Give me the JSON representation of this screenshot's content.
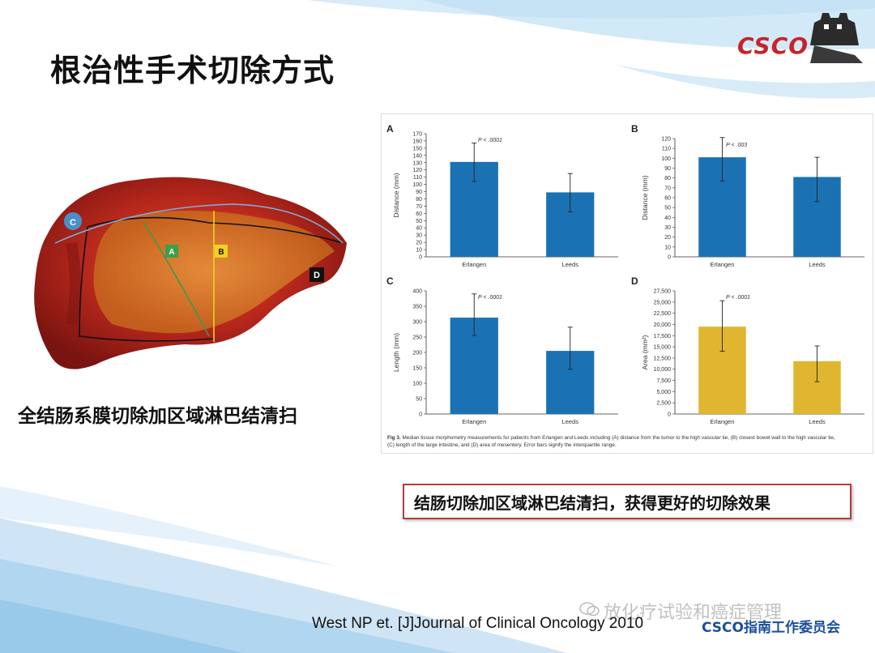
{
  "slide": {
    "title": "根治性手术切除方式",
    "specimen_caption": "全结肠系膜切除加区域淋巴结清扫",
    "highlight": "结肠切除加区域淋巴结清扫，获得更好的切除效果",
    "reference": "West NP et. [J]Journal of Clinical Oncology 2010",
    "footer": "CSCO指南工作委员会",
    "watermark": "放化疗试验和癌症管理",
    "logo_text": "CSCO"
  },
  "specimen_labels": {
    "c": "C",
    "a": "A",
    "b": "B",
    "d": "D"
  },
  "figure_caption": {
    "bold": "Fig 3.",
    "text": "Median tissue morphometry measurements for patients from Erlangen and Leeds including (A) distance from the tumor to the high vascular tie, (B) closest bowel wall to the high vascular tie, (C) length of the large intestine, and (D) area of mesentery. Error bars signify the interquartile range."
  },
  "colors": {
    "blue_bar": "#1b72b3",
    "gold_bar": "#e0b530",
    "box_border": "#b73a3a"
  },
  "chart_data": [
    {
      "panel": "A",
      "type": "bar",
      "categories": [
        "Erlangen",
        "Leeds"
      ],
      "values": [
        131,
        89
      ],
      "error_low": [
        104,
        62
      ],
      "error_high": [
        157,
        115
      ],
      "ylabel": "Distance (mm)",
      "ylim": [
        0,
        170
      ],
      "yticks": [
        0,
        10,
        20,
        30,
        40,
        50,
        60,
        70,
        80,
        90,
        100,
        110,
        120,
        130,
        140,
        150,
        160,
        170
      ],
      "ytick_labels": [
        "0",
        "10",
        "20",
        "30",
        "40",
        "50",
        "60",
        "70",
        "80",
        "90",
        "100",
        "110",
        "120",
        "130",
        "140",
        "150",
        "160",
        "170"
      ],
      "pvalue": "P < .0001",
      "color": "#1b72b3"
    },
    {
      "panel": "B",
      "type": "bar",
      "categories": [
        "Erlangen",
        "Leeds"
      ],
      "values": [
        101,
        81
      ],
      "error_low": [
        77,
        56
      ],
      "error_high": [
        121,
        101
      ],
      "ylabel": "Distance (mm)",
      "ylim": [
        0,
        120
      ],
      "yticks": [
        0,
        10,
        20,
        30,
        40,
        50,
        60,
        70,
        80,
        90,
        100,
        110,
        120
      ],
      "ytick_labels": [
        "0",
        "10",
        "20",
        "30",
        "40",
        "50",
        "60",
        "70",
        "80",
        "90",
        "100",
        "110",
        "120"
      ],
      "pvalue": "P < .003",
      "color": "#1b72b3"
    },
    {
      "panel": "C",
      "type": "bar",
      "categories": [
        "Erlangen",
        "Leeds"
      ],
      "values": [
        313,
        205
      ],
      "error_low": [
        255,
        145
      ],
      "error_high": [
        390,
        282
      ],
      "ylabel": "Length (mm)",
      "ylim": [
        0,
        400
      ],
      "yticks": [
        0,
        50,
        100,
        150,
        200,
        250,
        300,
        350,
        400
      ],
      "ytick_labels": [
        "0",
        "50",
        "100",
        "150",
        "200",
        "250",
        "300",
        "350",
        "400"
      ],
      "pvalue": "P < .0001",
      "color": "#1b72b3"
    },
    {
      "panel": "D",
      "type": "bar",
      "categories": [
        "Erlangen",
        "Leeds"
      ],
      "values": [
        19500,
        11800
      ],
      "error_low": [
        14000,
        7200
      ],
      "error_high": [
        25300,
        15200
      ],
      "ylabel": "Area (mm²)",
      "ylim": [
        0,
        27500
      ],
      "yticks": [
        0,
        2500,
        5000,
        7500,
        10000,
        12500,
        15000,
        17500,
        20000,
        22500,
        25000,
        27500
      ],
      "ytick_labels": [
        "0",
        "2,500",
        "5,000",
        "7,500",
        "10,000",
        "12,500",
        "15,000",
        "17,500",
        "20,000",
        "22,500",
        "25,000",
        "27,500"
      ],
      "pvalue": "P < .0001",
      "color": "#e0b530"
    }
  ]
}
